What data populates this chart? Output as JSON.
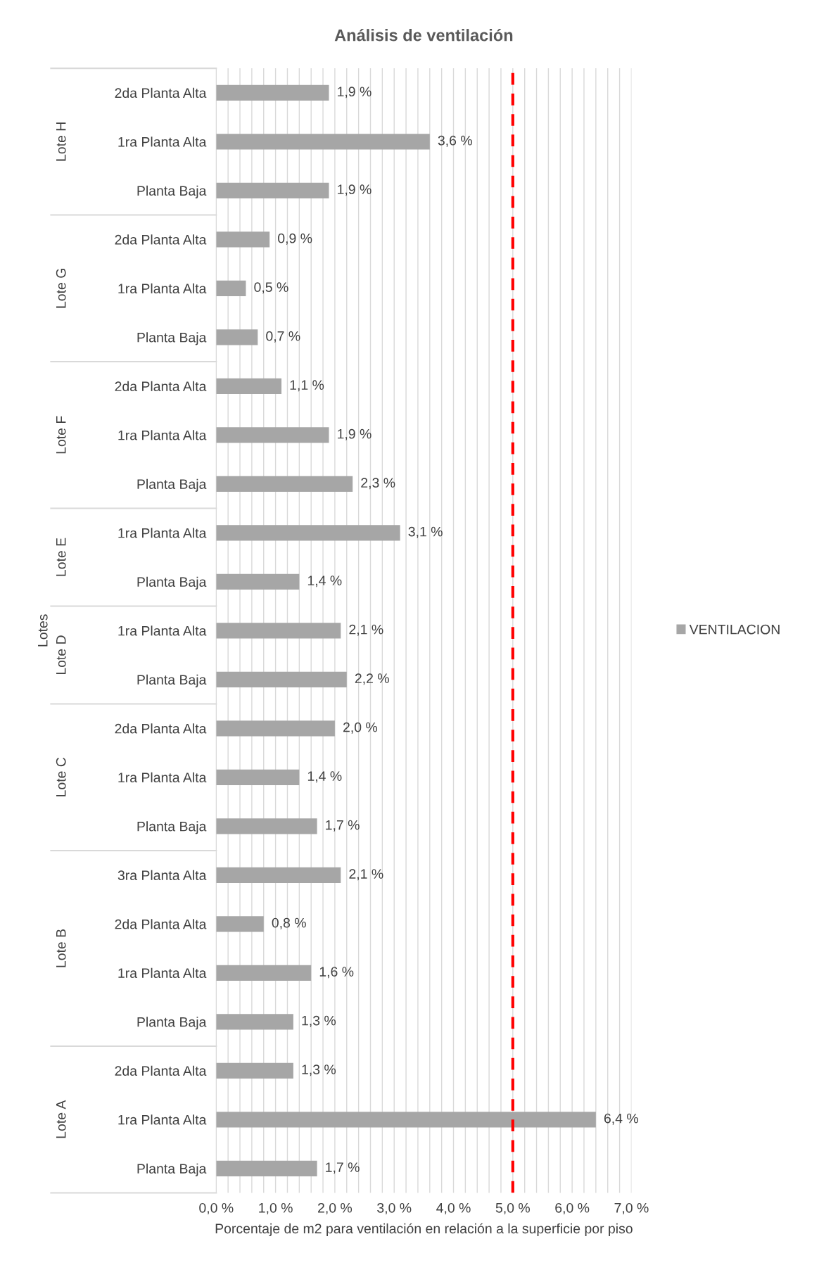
{
  "chart_data": {
    "type": "bar",
    "orientation": "horizontal",
    "title": "Análisis de ventilación",
    "xlabel": "Porcentaje de m2 para ventilación en relación a la superficie por piso",
    "ylabel": "Lotes",
    "categories": [
      "2da Planta Alta",
      "1ra Planta Alta",
      "Planta Baja",
      "2da Planta Alta",
      "1ra Planta Alta",
      "Planta Baja",
      "2da Planta Alta",
      "1ra Planta Alta",
      "Planta Baja",
      "1ra Planta Alta",
      "Planta Baja",
      "1ra Planta Alta",
      "Planta Baja",
      "2da Planta Alta",
      "1ra Planta Alta",
      "Planta Baja",
      "3ra Planta Alta",
      "2da Planta Alta",
      "1ra Planta Alta",
      "Planta Baja",
      "2da Planta Alta",
      "1ra Planta Alta",
      "Planta Baja"
    ],
    "series": [
      {
        "name": "VENTILACION",
        "color": "#a6a6a6",
        "values": [
          1.9,
          3.6,
          1.9,
          0.9,
          0.5,
          0.7,
          1.1,
          1.9,
          2.3,
          3.1,
          1.4,
          2.1,
          2.2,
          2.0,
          1.4,
          1.7,
          2.1,
          0.8,
          1.6,
          1.3,
          1.3,
          6.4,
          1.7
        ],
        "value_labels": [
          "1,9 %",
          "3,6 %",
          "1,9 %",
          "0,9 %",
          "0,5 %",
          "0,7 %",
          "1,1 %",
          "1,9 %",
          "2,3 %",
          "3,1 %",
          "1,4 %",
          "2,1 %",
          "2,2 %",
          "2,0 %",
          "1,4 %",
          "1,7 %",
          "2,1 %",
          "0,8 %",
          "1,6 %",
          "1,3 %",
          "1,3 %",
          "6,4 %",
          "1,7 %"
        ]
      }
    ],
    "xlim": [
      0,
      7.0
    ],
    "xticks": [
      {
        "value": 0,
        "label": "0,0 %"
      },
      {
        "value": 0.2,
        "label": null
      },
      {
        "value": 0.4,
        "label": null
      },
      {
        "value": 0.6,
        "label": null
      },
      {
        "value": 0.8,
        "label": null
      },
      {
        "value": 1,
        "label": "1,0 %"
      },
      {
        "value": 1.2,
        "label": null
      },
      {
        "value": 1.4,
        "label": null
      },
      {
        "value": 1.6,
        "label": null
      },
      {
        "value": 1.8,
        "label": null
      },
      {
        "value": 2,
        "label": "2,0 %"
      },
      {
        "value": 2.2,
        "label": null
      },
      {
        "value": 2.4,
        "label": null
      },
      {
        "value": 2.6,
        "label": null
      },
      {
        "value": 2.8,
        "label": null
      },
      {
        "value": 3,
        "label": "3,0 %"
      },
      {
        "value": 3.2,
        "label": null
      },
      {
        "value": 3.4,
        "label": null
      },
      {
        "value": 3.6,
        "label": null
      },
      {
        "value": 3.8,
        "label": null
      },
      {
        "value": 4,
        "label": "4,0 %"
      },
      {
        "value": 4.2,
        "label": null
      },
      {
        "value": 4.4,
        "label": null
      },
      {
        "value": 4.6,
        "label": null
      },
      {
        "value": 4.8,
        "label": null
      },
      {
        "value": 5,
        "label": "5,0 %"
      },
      {
        "value": 5.2,
        "label": null
      },
      {
        "value": 5.4,
        "label": null
      },
      {
        "value": 5.6,
        "label": null
      },
      {
        "value": 5.8,
        "label": null
      },
      {
        "value": 6,
        "label": "6,0 %"
      },
      {
        "value": 6.2,
        "label": null
      },
      {
        "value": 6.4,
        "label": null
      },
      {
        "value": 6.6,
        "label": null
      },
      {
        "value": 6.8,
        "label": null
      },
      {
        "value": 7,
        "label": "7,0 %"
      }
    ],
    "grid": "x",
    "legend": "right",
    "ref_lines": [
      {
        "axis": "x",
        "value": 5.0,
        "color": "#ff0000",
        "line_style": "dashed"
      }
    ],
    "annotations": [
      "Lote H",
      "Lote G",
      "Lote F",
      "Lote E",
      "Lote D",
      "Lote C",
      "Lote B",
      "Lote A"
    ]
  }
}
